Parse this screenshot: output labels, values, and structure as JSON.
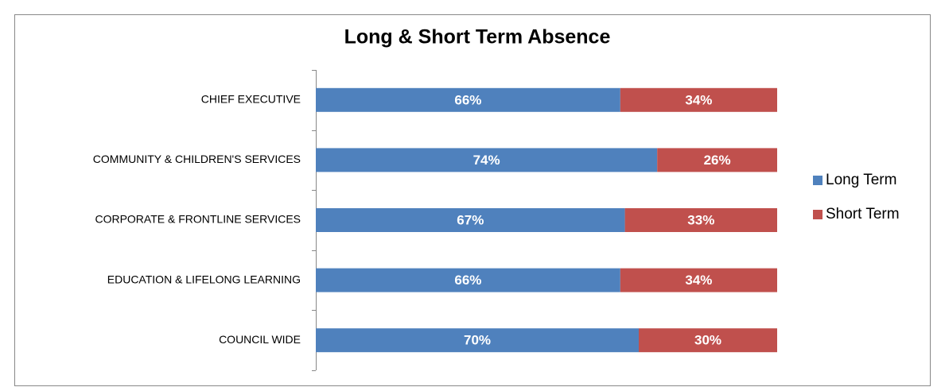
{
  "chart_data": {
    "type": "stacked-bar-horizontal",
    "title": "Long & Short Term Absence",
    "categories": [
      "CHIEF EXECUTIVE",
      "COMMUNITY & CHILDREN'S SERVICES",
      "CORPORATE & FRONTLINE SERVICES",
      "EDUCATION & LIFELONG LEARNING",
      "COUNCIL WIDE"
    ],
    "series": [
      {
        "name": "Long Term",
        "color": "#4f81bd",
        "values": [
          66,
          74,
          67,
          66,
          70
        ],
        "value_labels": [
          "66%",
          "74%",
          "67%",
          "66%",
          "70%"
        ]
      },
      {
        "name": "Short Term",
        "color": "#c0504d",
        "values": [
          34,
          26,
          33,
          34,
          30
        ],
        "value_labels": [
          "34%",
          "26%",
          "33%",
          "34%",
          "30%"
        ]
      }
    ],
    "xlim": [
      0,
      100
    ],
    "legend": "right"
  }
}
